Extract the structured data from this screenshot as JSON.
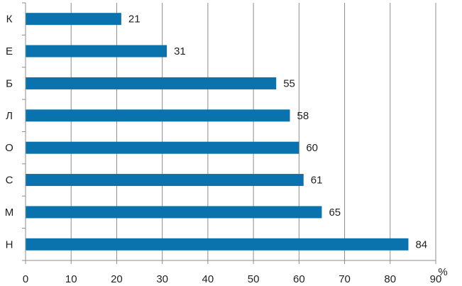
{
  "chart_data": {
    "type": "bar",
    "orientation": "horizontal",
    "categories": [
      "К",
      "Е",
      "Б",
      "Л",
      "О",
      "С",
      "М",
      "Н"
    ],
    "values": [
      21,
      31,
      55,
      58,
      60,
      61,
      65,
      84
    ],
    "xlim": [
      0,
      90
    ],
    "xticks": [
      0,
      10,
      20,
      30,
      40,
      50,
      60,
      70,
      80,
      90
    ],
    "xticks_text": [
      "0",
      "10",
      "20",
      "30",
      "40",
      "50",
      "60",
      "70",
      "80",
      "90"
    ],
    "value_labels": [
      "21",
      "31",
      "55",
      "58",
      "60",
      "61",
      "65",
      "84"
    ],
    "unit": "%",
    "grid": "vertical",
    "legend": "none",
    "bar_color": "#0a72ad"
  }
}
